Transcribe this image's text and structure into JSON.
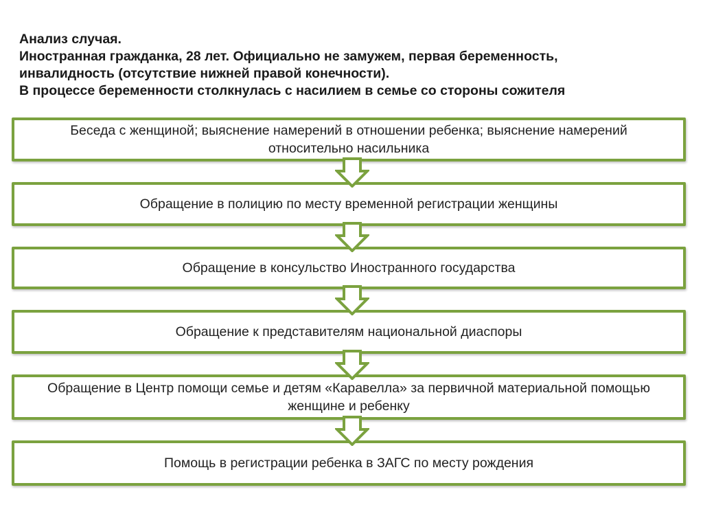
{
  "header": {
    "lines": [
      "Анализ случая.",
      "Иностранная гражданка, 28 лет. Официально не замужем, первая беременность,",
      "инвалидность (отсутствие нижней правой конечности).",
      "В процессе беременности столкнулась с насилием в семье со стороны сожителя"
    ]
  },
  "steps": [
    "Беседа с женщиной; выяснение намерений в отношении ребенка; выяснение намерений относительно насильника",
    "Обращение в полицию по месту временной регистрации женщины",
    "Обращение в консульство Иностранного государства",
    "Обращение к представителям национальной диаспоры",
    "Обращение в Центр помощи семье и детям  «Каравелла» за первичной материальной помощью женщине и ребенку",
    "Помощь в регистрации ребенка в ЗАГС по месту рождения"
  ],
  "colors": {
    "accent": "#7ba23f"
  },
  "icons": {
    "connector": "down-arrow-icon"
  }
}
